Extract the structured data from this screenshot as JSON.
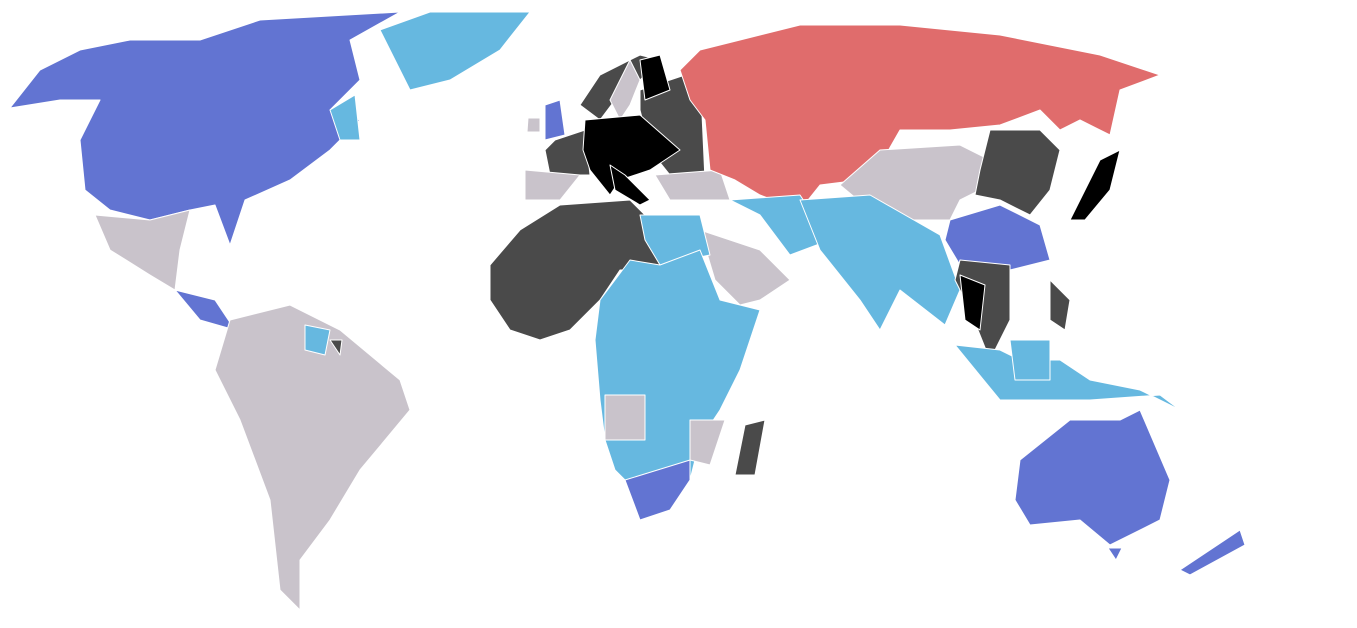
{
  "map": {
    "background": "#FFFFFF",
    "border_color": "#FFFFFF",
    "category_colors": {
      "allied_major": "#6274D2",
      "allied": "#66B8E0",
      "soviet": "#E06C6C",
      "axis_occupied": "#4A4A4A",
      "axis": "#000000",
      "neutral": "#C9C3CB"
    }
  }
}
